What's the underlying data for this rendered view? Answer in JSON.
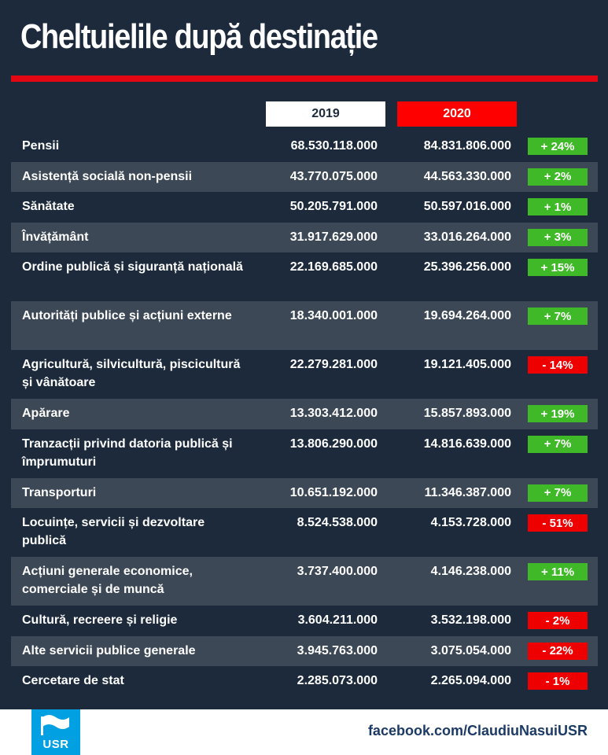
{
  "title": "Cheltuielile după destinație",
  "colors": {
    "background": "#1c2a3c",
    "accent_red": "#e30613",
    "increase": "#3fb928",
    "decrease": "#ee0000",
    "usr_blue": "#00a0e3"
  },
  "headers": {
    "y2019": "2019",
    "y2020": "2020"
  },
  "rows": [
    {
      "label": "Pensii",
      "v2019": "68.530.118.000",
      "v2020": "84.831.806.000",
      "change": "+ 24%",
      "trend": "up"
    },
    {
      "label": "Asistență socială non-pensii",
      "v2019": "43.770.075.000",
      "v2020": "44.563.330.000",
      "change": "+ 2%",
      "trend": "up"
    },
    {
      "label": "Sănătate",
      "v2019": "50.205.791.000",
      "v2020": "50.597.016.000",
      "change": "+ 1%",
      "trend": "up"
    },
    {
      "label": "Învățământ",
      "v2019": "31.917.629.000",
      "v2020": "33.016.264.000",
      "change": "+ 3%",
      "trend": "up"
    },
    {
      "label": "Ordine publică și siguranță națională",
      "v2019": "22.169.685.000",
      "v2020": "25.396.256.000",
      "change": "+ 15%",
      "trend": "up"
    },
    {
      "label": "Autorități publice și acțiuni externe",
      "v2019": "18.340.001.000",
      "v2020": "19.694.264.000",
      "change": "+ 7%",
      "trend": "up"
    },
    {
      "label": "Agricultură, silvicultură, piscicultură și vânătoare",
      "v2019": "22.279.281.000",
      "v2020": "19.121.405.000",
      "change": "- 14%",
      "trend": "down"
    },
    {
      "label": "Apărare",
      "v2019": "13.303.412.000",
      "v2020": "15.857.893.000",
      "change": "+ 19%",
      "trend": "up"
    },
    {
      "label": "Tranzacții privind datoria publică și împrumuturi",
      "v2019": "13.806.290.000",
      "v2020": "14.816.639.000",
      "change": "+ 7%",
      "trend": "up"
    },
    {
      "label": "Transporturi",
      "v2019": "10.651.192.000",
      "v2020": "11.346.387.000",
      "change": "+ 7%",
      "trend": "up"
    },
    {
      "label": "Locuințe, servicii și dezvoltare publică",
      "v2019": "8.524.538.000",
      "v2020": "4.153.728.000",
      "change": "- 51%",
      "trend": "down"
    },
    {
      "label": "Acțiuni generale economice, comerciale și de muncă",
      "v2019": "3.737.400.000",
      "v2020": "4.146.238.000",
      "change": "+ 11%",
      "trend": "up"
    },
    {
      "label": "Cultură, recreere și religie",
      "v2019": "3.604.211.000",
      "v2020": "3.532.198.000",
      "change": "- 2%",
      "trend": "down"
    },
    {
      "label": "Alte servicii publice generale",
      "v2019": "3.945.763.000",
      "v2020": "3.075.054.000",
      "change": "- 22%",
      "trend": "down"
    },
    {
      "label": "Cercetare de stat",
      "v2019": "2.285.073.000",
      "v2020": "2.265.094.000",
      "change": "- 1%",
      "trend": "down"
    }
  ],
  "footer": {
    "logo_text": "USR",
    "logo_icon": "usr-flag-icon",
    "link": "facebook.com/ClaudiuNasuiUSR"
  }
}
